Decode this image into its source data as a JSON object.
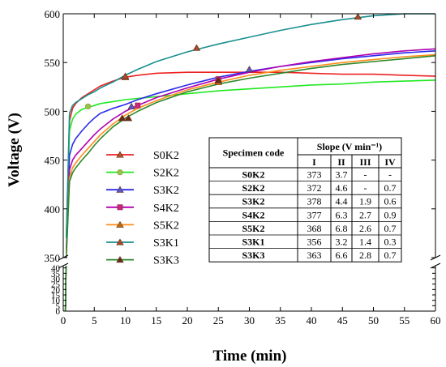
{
  "chart_data": {
    "type": "line",
    "xlabel": "Time (min)",
    "ylabel": "Voltage (V)",
    "xlim": [
      0,
      60
    ],
    "xticks": [
      "0",
      "5",
      "10",
      "15",
      "20",
      "25",
      "30",
      "35",
      "40",
      "45",
      "50",
      "55",
      "60"
    ],
    "y_upper_range": [
      350,
      600
    ],
    "y_upper_ticks": [
      "350",
      "400",
      "450",
      "500",
      "550",
      "600"
    ],
    "y_lower_range": [
      0,
      42
    ],
    "y_lower_ticks": [
      "0",
      "5",
      "10",
      "15",
      "20",
      "25",
      "30",
      "35",
      "40"
    ],
    "axis_break": true,
    "grid": false,
    "legend_position": "center-left",
    "series": [
      {
        "name": "S0K2",
        "color": "#ee2222",
        "marker": "triangle",
        "marker_fill": "#b5532f",
        "x": [
          0.5,
          1,
          1.5,
          2,
          3,
          4,
          5,
          6,
          8,
          10,
          12,
          15,
          20,
          25,
          30,
          35,
          40,
          45,
          50,
          55,
          60
        ],
        "y": [
          370,
          490,
          503,
          508,
          514,
          518,
          522,
          526,
          531,
          535,
          537,
          539,
          540,
          540,
          540,
          540,
          539,
          538,
          538,
          537,
          536
        ],
        "markers": [
          [
            10,
            535
          ]
        ]
      },
      {
        "name": "S2K2",
        "color": "#22e822",
        "marker": "circle",
        "marker_fill": "#9bc04a",
        "x": [
          0.5,
          1,
          1.5,
          2,
          3,
          4,
          5,
          6,
          8,
          10,
          15,
          20,
          25,
          30,
          35,
          40,
          45,
          50,
          55,
          60
        ],
        "y": [
          370,
          480,
          492,
          497,
          502,
          504,
          506,
          508,
          510,
          512,
          515,
          518,
          521,
          523,
          525,
          527,
          528,
          530,
          531,
          532
        ],
        "markers": [
          [
            4,
            505
          ]
        ]
      },
      {
        "name": "S3K2",
        "color": "#2a2aee",
        "marker": "triangle",
        "marker_fill": "#5a55d0",
        "x": [
          0.5,
          1,
          1.5,
          2,
          3,
          4,
          5,
          6,
          8,
          10,
          12,
          15,
          20,
          25,
          30,
          35,
          40,
          45,
          50,
          55,
          60
        ],
        "y": [
          360,
          455,
          466,
          472,
          480,
          487,
          493,
          498,
          503,
          507,
          512,
          518,
          527,
          535,
          541,
          546,
          550,
          554,
          557,
          560,
          562
        ],
        "markers": [
          [
            11,
            505
          ],
          [
            30,
            543
          ]
        ]
      },
      {
        "name": "S4K2",
        "color": "#b000b0",
        "marker": "square",
        "marker_fill": "#c42a75",
        "x": [
          0.5,
          1,
          1.5,
          2,
          3,
          4,
          5,
          6,
          8,
          10,
          12,
          15,
          20,
          25,
          30,
          35,
          40,
          45,
          50,
          55,
          60
        ],
        "y": [
          355,
          440,
          450,
          455,
          462,
          469,
          476,
          482,
          492,
          500,
          506,
          514,
          524,
          533,
          540,
          546,
          551,
          555,
          559,
          562,
          564
        ],
        "markers": [
          [
            12,
            506
          ],
          [
            25,
            533
          ]
        ]
      },
      {
        "name": "S5K2",
        "color": "#ff8c1a",
        "marker": "triangle",
        "marker_fill": "#c06c10",
        "x": [
          0.5,
          1,
          1.5,
          2,
          3,
          4,
          5,
          6,
          8,
          10,
          12,
          15,
          20,
          25,
          30,
          35,
          40,
          45,
          50,
          55,
          60
        ],
        "y": [
          355,
          432,
          442,
          447,
          455,
          462,
          469,
          476,
          487,
          496,
          503,
          511,
          522,
          530,
          537,
          542,
          546,
          550,
          553,
          556,
          558
        ],
        "markers": [
          [
            25,
            530
          ]
        ]
      },
      {
        "name": "S3K1",
        "color": "#1a8f8f",
        "marker": "triangle",
        "marker_fill": "#a8492a",
        "x": [
          0.5,
          1,
          1.5,
          2,
          3,
          4,
          5,
          6,
          8,
          10,
          12,
          15,
          20,
          25,
          30,
          35,
          40,
          45,
          50,
          55,
          60
        ],
        "y": [
          370,
          498,
          506,
          509,
          513,
          517,
          520,
          524,
          530,
          537,
          543,
          551,
          561,
          569,
          576,
          583,
          589,
          594,
          598,
          600,
          600
        ],
        "markers": [
          [
            10,
            536
          ],
          [
            21.5,
            565
          ],
          [
            47.5,
            597
          ]
        ]
      },
      {
        "name": "S3K3",
        "color": "#2b8a2b",
        "marker": "triangle",
        "marker_fill": "#6b2b1a",
        "x": [
          0.5,
          1,
          1.5,
          2,
          3,
          4,
          5,
          6,
          8,
          10,
          12,
          15,
          20,
          25,
          30,
          35,
          40,
          45,
          50,
          55,
          60
        ],
        "y": [
          350,
          428,
          437,
          442,
          450,
          457,
          465,
          472,
          484,
          493,
          500,
          509,
          520,
          528,
          534,
          539,
          544,
          548,
          551,
          554,
          557
        ],
        "markers": [
          [
            9.5,
            493
          ],
          [
            10.5,
            493
          ],
          [
            25,
            532
          ]
        ]
      }
    ],
    "table": {
      "header_code": "Specimen code",
      "header_slope": "Slope (V min⁻¹)",
      "columns": [
        "I",
        "II",
        "III",
        "IV"
      ],
      "rows": [
        [
          "S0K2",
          "373",
          "3.7",
          "-",
          "-"
        ],
        [
          "S2K2",
          "372",
          "4.6",
          "-",
          "0.7"
        ],
        [
          "S3K2",
          "378",
          "4.4",
          "1.9",
          "0.6"
        ],
        [
          "S4K2",
          "377",
          "6.3",
          "2.7",
          "0.9"
        ],
        [
          "S5K2",
          "368",
          "6.8",
          "2.6",
          "0.7"
        ],
        [
          "S3K1",
          "356",
          "3.2",
          "1.4",
          "0.3"
        ],
        [
          "S3K3",
          "363",
          "6.6",
          "2.8",
          "0.7"
        ]
      ]
    }
  }
}
